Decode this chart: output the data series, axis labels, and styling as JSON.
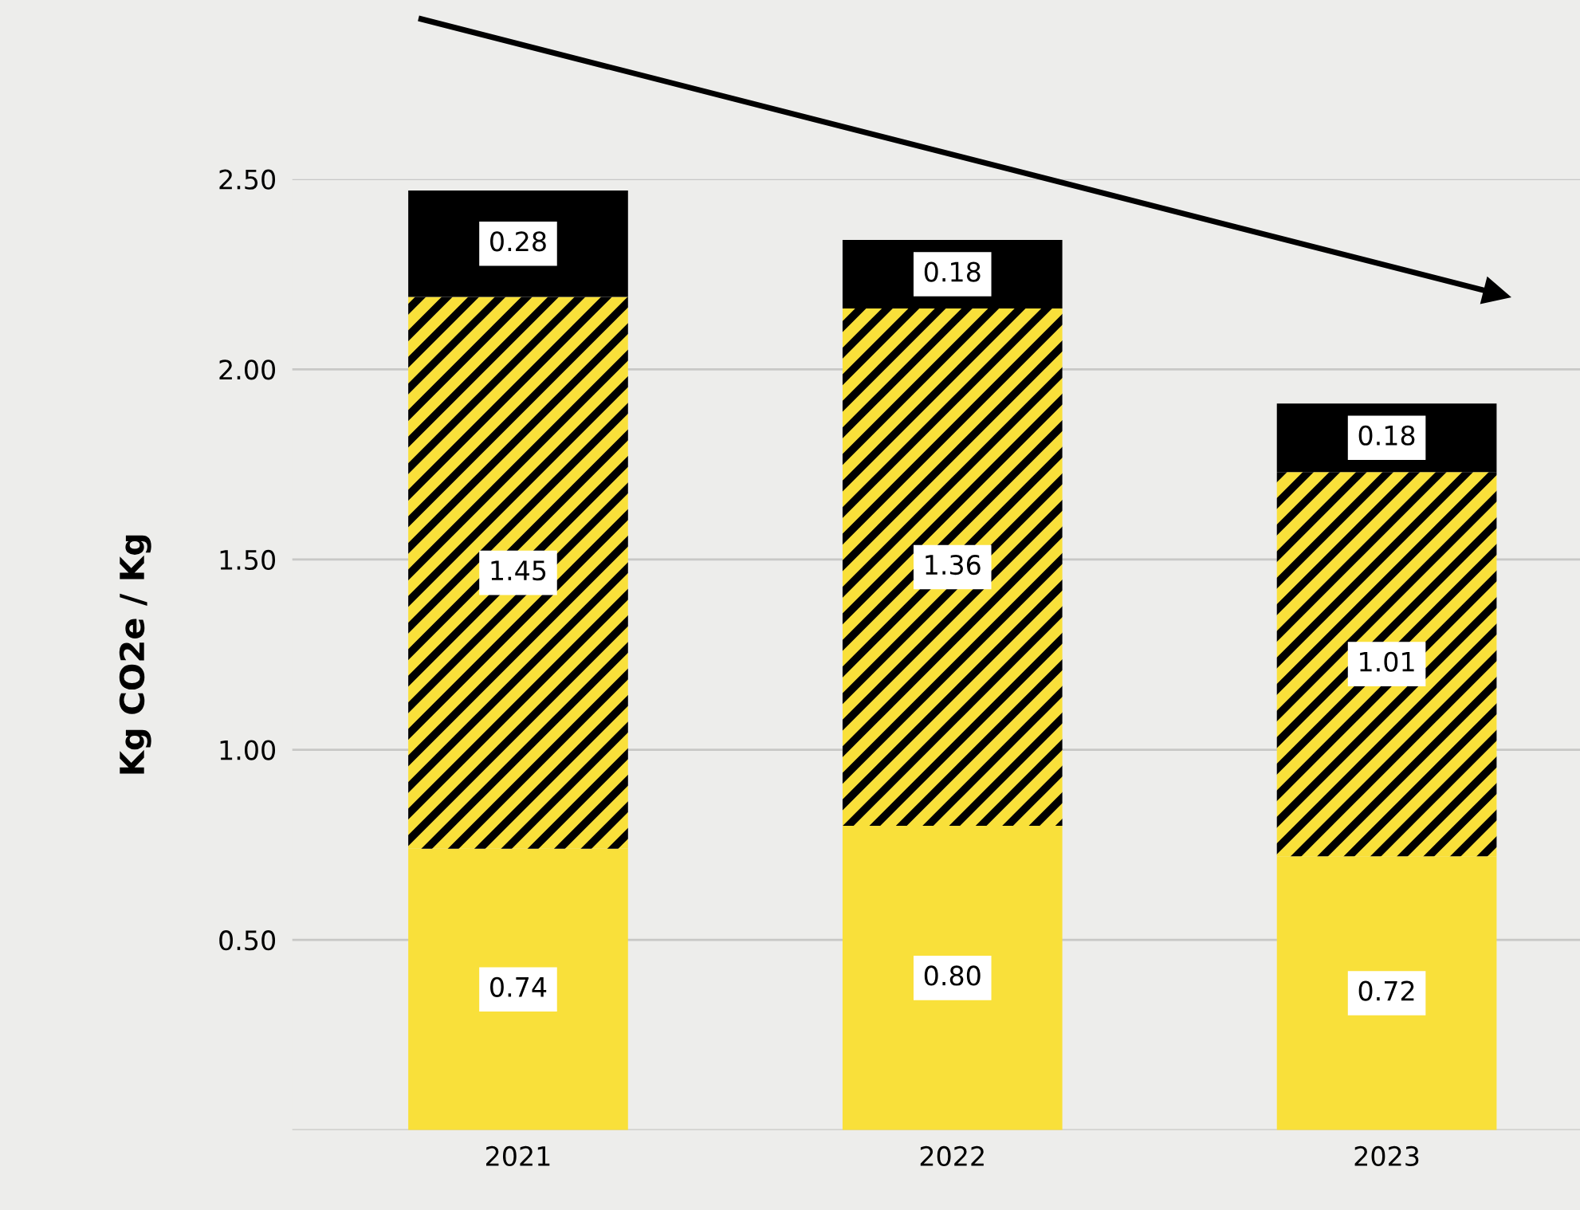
{
  "chart_data": {
    "type": "bar",
    "stacked": true,
    "ylabel": "Kg CO2e / Kg",
    "categories": [
      "2021",
      "2022",
      "2023"
    ],
    "series": [
      {
        "color": "#f9e03a",
        "values": [
          0.74,
          0.8,
          0.72
        ],
        "value_labels": [
          "0.74",
          "0.80",
          "0.72"
        ]
      },
      {
        "color": "#f9e03a",
        "values": [
          1.45,
          1.36,
          1.01
        ],
        "value_labels": [
          "1.45",
          "1.36",
          "1.01"
        ]
      },
      {
        "color": "#000000",
        "values": [
          0.28,
          0.18,
          0.18
        ],
        "value_labels": [
          "0.28",
          "0.18",
          "0.18"
        ]
      }
    ],
    "ylim": [
      0,
      2.5
    ],
    "yticks": [
      {
        "value": 0,
        "label": null
      },
      {
        "value": 0.5,
        "label": "0.50"
      },
      {
        "value": 1.0,
        "label": "1.00"
      },
      {
        "value": 1.5,
        "label": "1.50"
      },
      {
        "value": 2.0,
        "label": "2.00"
      },
      {
        "value": 2.5,
        "label": "2.50"
      }
    ],
    "grid": "y"
  }
}
